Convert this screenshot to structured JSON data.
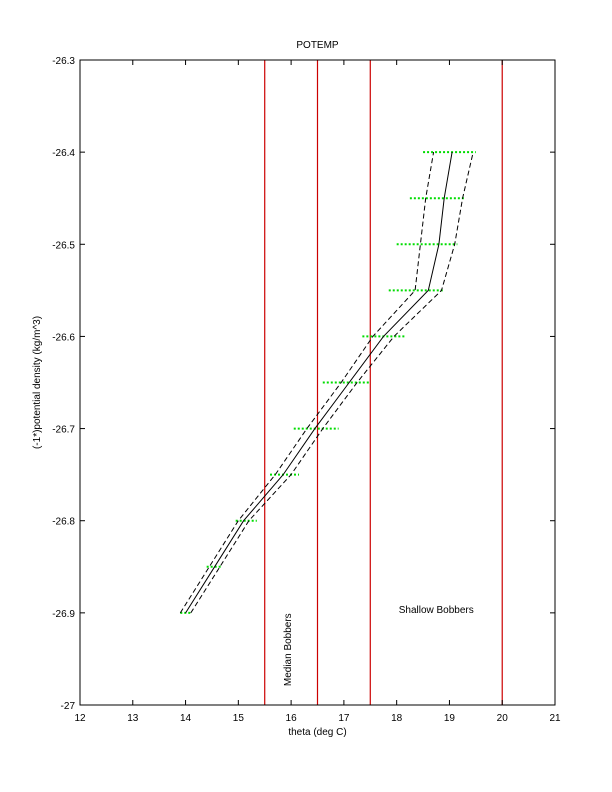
{
  "chart_data": {
    "type": "line",
    "title": "POTEMP",
    "xlabel": "theta (deg C)",
    "ylabel": "(-1*)potential density (kg/m^3)",
    "xlim": [
      12,
      21
    ],
    "ylim": [
      -27,
      -26.3
    ],
    "x_ticks": [
      12,
      13,
      14,
      15,
      16,
      17,
      18,
      19,
      20,
      21
    ],
    "y_ticks": [
      -26.3,
      -26.4,
      -26.5,
      -26.6,
      -26.7,
      -26.8,
      -26.9,
      -27
    ],
    "x_tick_labels": [
      "12",
      "13",
      "14",
      "15",
      "16",
      "17",
      "18",
      "19",
      "20",
      "21"
    ],
    "y_tick_labels": [
      "-26.3",
      "-26.4",
      "-26.5",
      "-26.6",
      "-26.7",
      "-26.8",
      "-26.9",
      "-27"
    ],
    "grid": false,
    "series": [
      {
        "style": "solid",
        "color": "#000000",
        "points": [
          [
            14.0,
            -26.9
          ],
          [
            14.55,
            -26.85
          ],
          [
            15.1,
            -26.8
          ],
          [
            15.85,
            -26.75
          ],
          [
            16.45,
            -26.7
          ],
          [
            17.1,
            -26.65
          ],
          [
            17.75,
            -26.6
          ],
          [
            18.6,
            -26.55
          ],
          [
            18.8,
            -26.5
          ],
          [
            18.9,
            -26.45
          ],
          [
            19.05,
            -26.4
          ]
        ]
      },
      {
        "style": "dashed",
        "color": "#000000",
        "points": [
          [
            13.9,
            -26.9
          ],
          [
            14.45,
            -26.85
          ],
          [
            15.0,
            -26.8
          ],
          [
            15.7,
            -26.75
          ],
          [
            16.3,
            -26.7
          ],
          [
            16.95,
            -26.65
          ],
          [
            17.55,
            -26.6
          ],
          [
            18.35,
            -26.55
          ],
          [
            18.45,
            -26.5
          ],
          [
            18.55,
            -26.45
          ],
          [
            18.7,
            -26.4
          ]
        ]
      },
      {
        "style": "dashed",
        "color": "#000000",
        "points": [
          [
            14.1,
            -26.9
          ],
          [
            14.65,
            -26.85
          ],
          [
            15.2,
            -26.8
          ],
          [
            16.0,
            -26.75
          ],
          [
            16.6,
            -26.7
          ],
          [
            17.25,
            -26.65
          ],
          [
            17.95,
            -26.6
          ],
          [
            18.85,
            -26.55
          ],
          [
            19.1,
            -26.5
          ],
          [
            19.25,
            -26.45
          ],
          [
            19.45,
            -26.4
          ]
        ]
      }
    ],
    "green_bars": {
      "color": "#00dd00",
      "rows": [
        {
          "y": -26.4,
          "x_min": 18.5,
          "x_max": 19.5
        },
        {
          "y": -26.45,
          "x_min": 18.25,
          "x_max": 19.3
        },
        {
          "y": -26.5,
          "x_min": 18.0,
          "x_max": 19.15
        },
        {
          "y": -26.55,
          "x_min": 17.85,
          "x_max": 18.9
        },
        {
          "y": -26.6,
          "x_min": 17.35,
          "x_max": 18.15
        },
        {
          "y": -26.65,
          "x_min": 16.6,
          "x_max": 17.5
        },
        {
          "y": -26.7,
          "x_min": 16.05,
          "x_max": 16.9
        },
        {
          "y": -26.75,
          "x_min": 15.6,
          "x_max": 16.15
        },
        {
          "y": -26.8,
          "x_min": 14.95,
          "x_max": 15.35
        },
        {
          "y": -26.85,
          "x_min": 14.4,
          "x_max": 14.7
        },
        {
          "y": -26.9,
          "x_min": 13.9,
          "x_max": 14.1
        }
      ]
    },
    "vertical_lines": {
      "color": "#cc0000",
      "x": [
        15.5,
        16.5,
        17.5,
        20.0
      ]
    },
    "annotations": [
      {
        "text": "Median Bobbers",
        "x": 16.0,
        "y": -26.94,
        "rotation": -90
      },
      {
        "text": "Shallow Bobbers",
        "x": 18.75,
        "y": -26.9,
        "rotation": 0
      }
    ]
  }
}
